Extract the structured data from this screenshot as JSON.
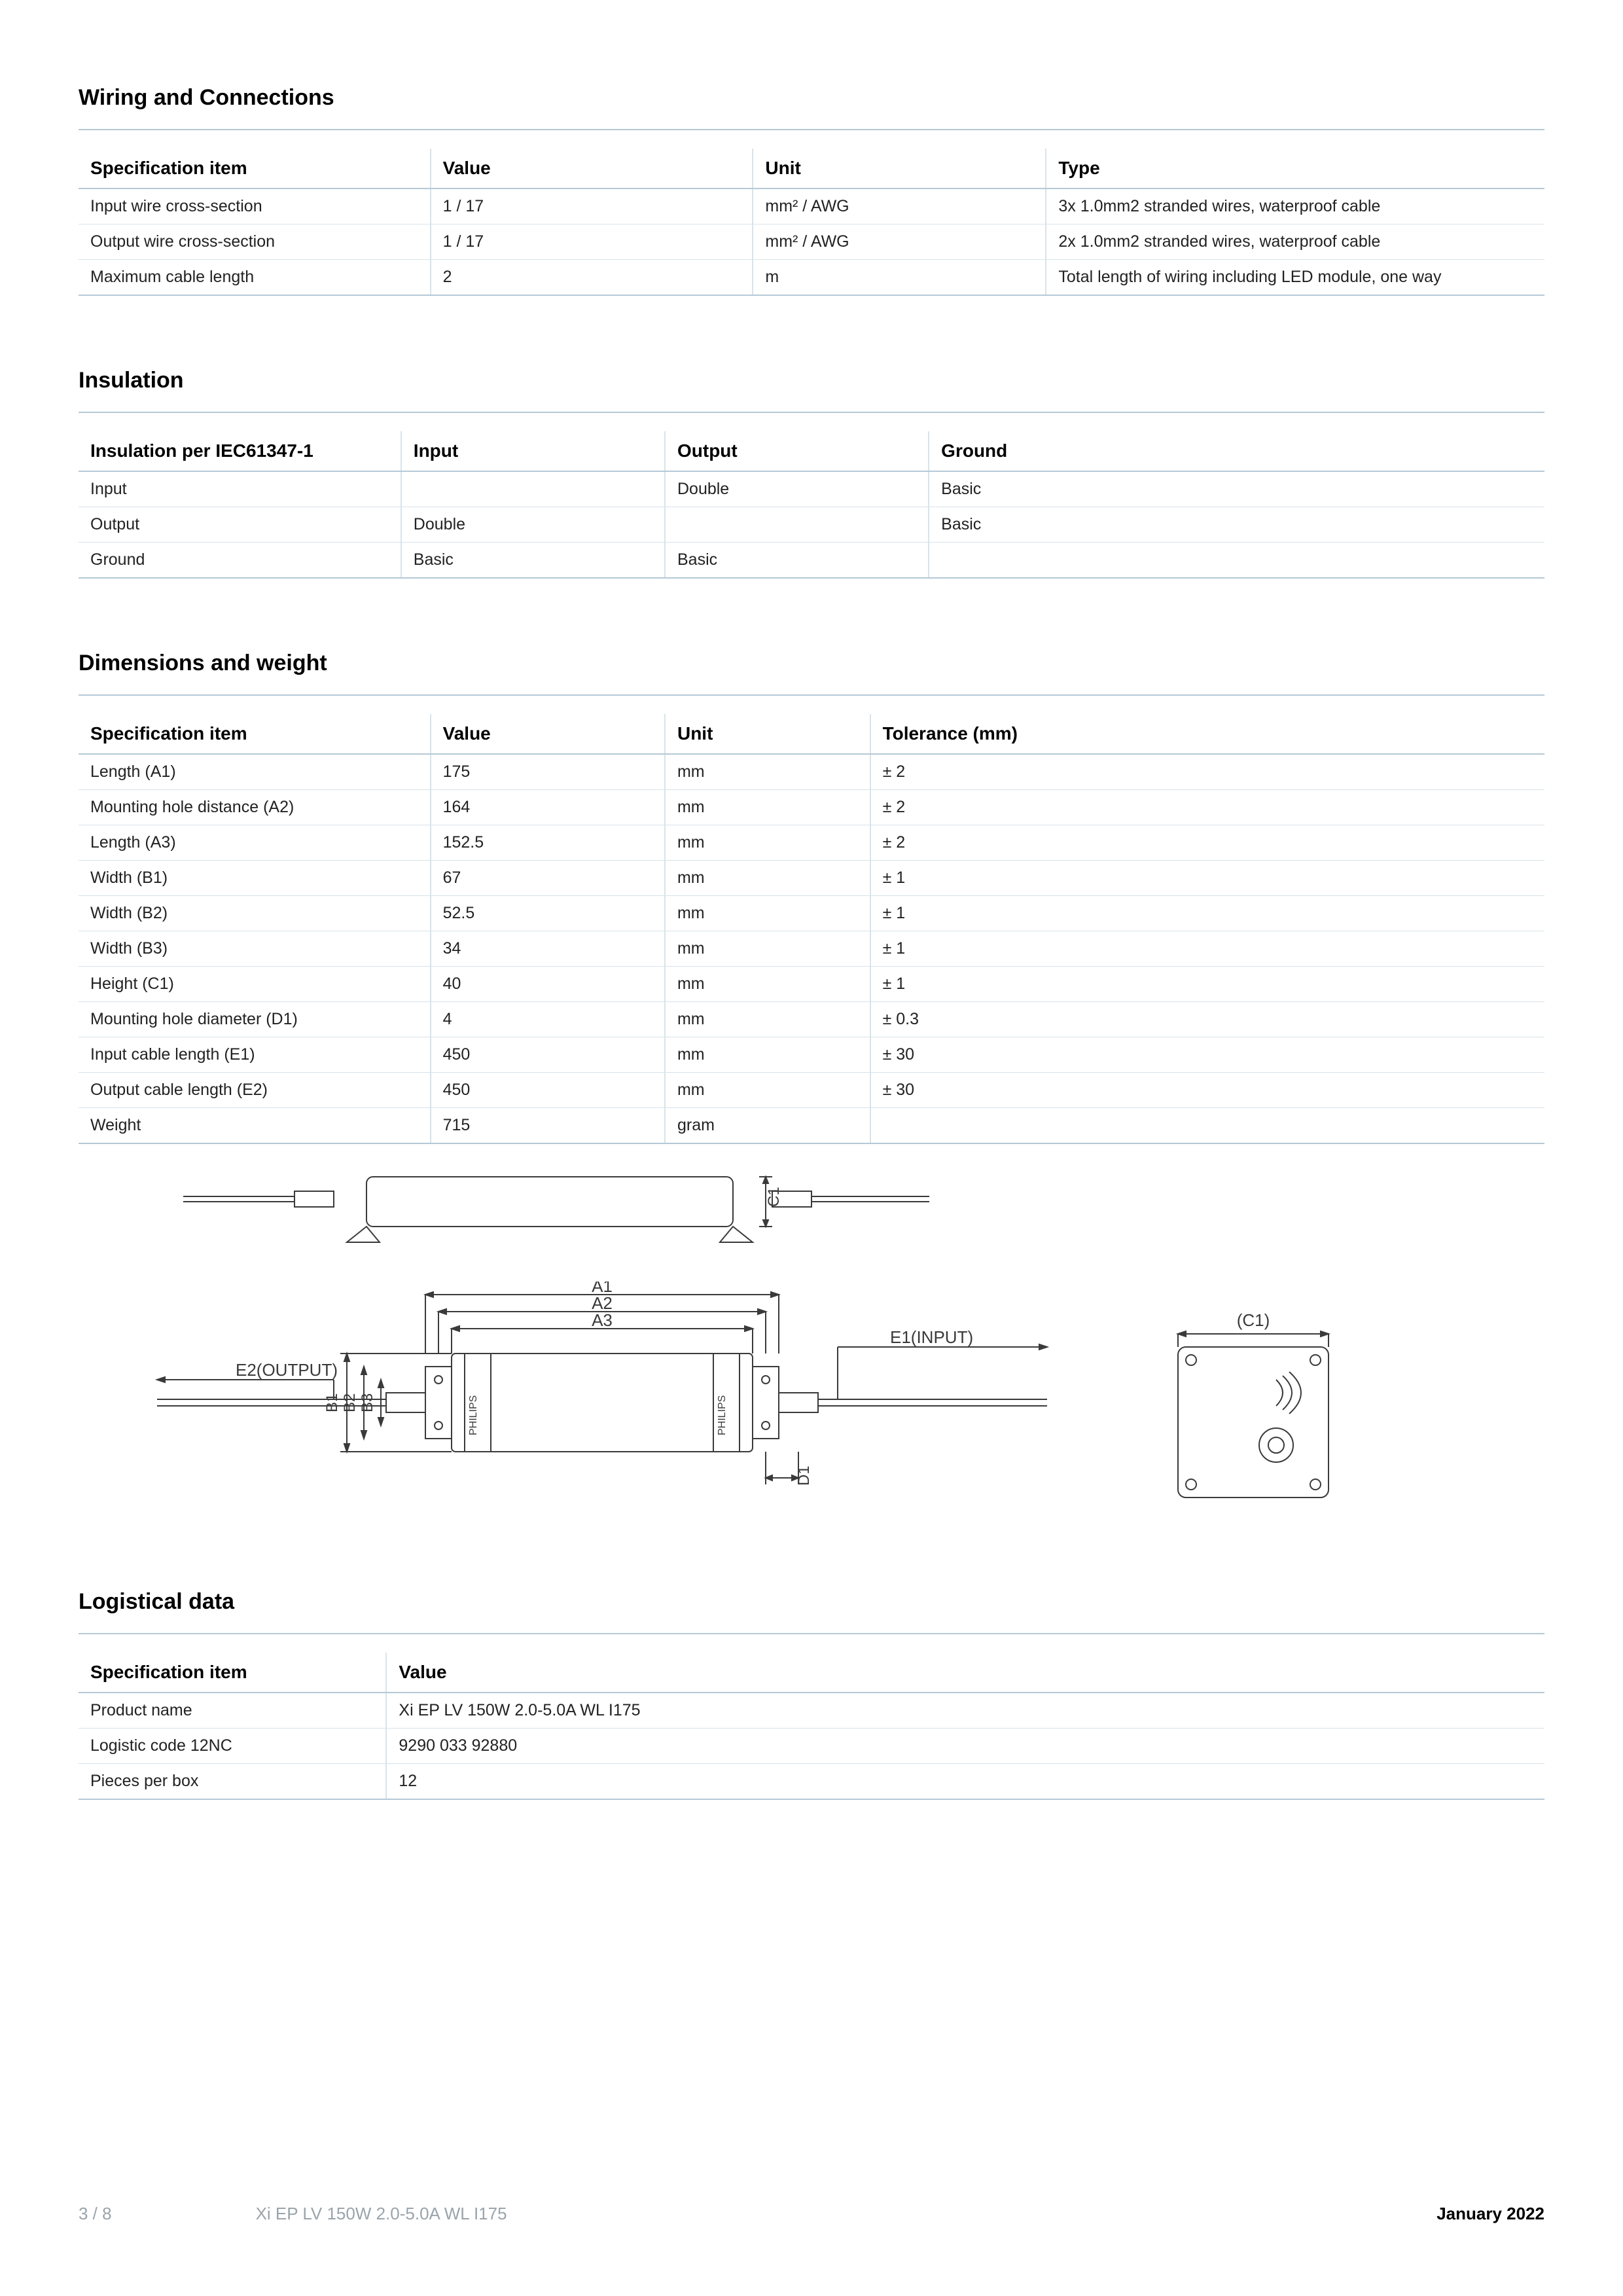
{
  "colors": {
    "rule": "#b5c9d6",
    "cell_border": "#d8e3ea",
    "text": "#1a1a1a",
    "muted": "#9aa4ab",
    "bg": "#ffffff",
    "drawing_stroke": "#3a3a3a"
  },
  "sections": {
    "wiring": {
      "title": "Wiring and Connections",
      "headers": [
        "Specification item",
        "Value",
        "Unit",
        "Type"
      ],
      "col_widths": [
        "24%",
        "22%",
        "20%",
        "34%"
      ],
      "rows": [
        [
          "Input wire cross-section",
          "1 / 17",
          "mm² / AWG",
          "3x 1.0mm2 stranded wires, waterproof cable"
        ],
        [
          "Output wire cross-section",
          "1 / 17",
          "mm² / AWG",
          "2x 1.0mm2 stranded wires, waterproof cable"
        ],
        [
          "Maximum cable length",
          "2",
          "m",
          "Total length of wiring including LED module, one way"
        ]
      ]
    },
    "insulation": {
      "title": "Insulation",
      "headers": [
        "Insulation per IEC61347-1",
        "Input",
        "Output",
        "Ground"
      ],
      "col_widths": [
        "22%",
        "18%",
        "18%",
        "42%"
      ],
      "rows": [
        [
          "Input",
          "",
          "Double",
          "Basic"
        ],
        [
          "Output",
          "Double",
          "",
          "Basic"
        ],
        [
          "Ground",
          "Basic",
          "Basic",
          ""
        ]
      ]
    },
    "dimensions": {
      "title": "Dimensions and weight",
      "headers": [
        "Specification item",
        "Value",
        "Unit",
        "Tolerance (mm)"
      ],
      "col_widths": [
        "24%",
        "16%",
        "14%",
        "46%"
      ],
      "rows": [
        [
          "Length (A1)",
          "175",
          "mm",
          "± 2"
        ],
        [
          "Mounting hole distance (A2)",
          "164",
          "mm",
          "± 2"
        ],
        [
          "Length (A3)",
          "152.5",
          "mm",
          "± 2"
        ],
        [
          "Width (B1)",
          "67",
          "mm",
          "± 1"
        ],
        [
          "Width (B2)",
          "52.5",
          "mm",
          "± 1"
        ],
        [
          "Width (B3)",
          "34",
          "mm",
          "± 1"
        ],
        [
          "Height (C1)",
          "40",
          "mm",
          "± 1"
        ],
        [
          "Mounting hole diameter (D1)",
          "4",
          "mm",
          "± 0.3"
        ],
        [
          "Input cable length (E1)",
          "450",
          "mm",
          "± 30"
        ],
        [
          "Output cable length (E2)",
          "450",
          "mm",
          "± 30"
        ],
        [
          "Weight",
          "715",
          "gram",
          ""
        ]
      ]
    },
    "logistical": {
      "title": "Logistical data",
      "headers": [
        "Specification item",
        "Value"
      ],
      "col_widths": [
        "21%",
        "79%"
      ],
      "rows": [
        [
          "Product name",
          "Xi EP LV 150W 2.0-5.0A WL I175"
        ],
        [
          "Logistic code 12NC",
          "9290 033 92880"
        ],
        [
          "Pieces per box",
          "12"
        ]
      ]
    }
  },
  "drawing_labels": {
    "c1_side": "C1",
    "a1": "A1",
    "a2": "A2",
    "a3": "A3",
    "b1": "B1",
    "b2": "B2",
    "b3": "B3",
    "d1": "D1",
    "e1": "E1(INPUT)",
    "e2": "E2(OUTPUT)",
    "c1_end": "(C1)"
  },
  "footer": {
    "page": "3 / 8",
    "product": "Xi EP LV 150W 2.0-5.0A WL I175",
    "date": "January 2022"
  }
}
